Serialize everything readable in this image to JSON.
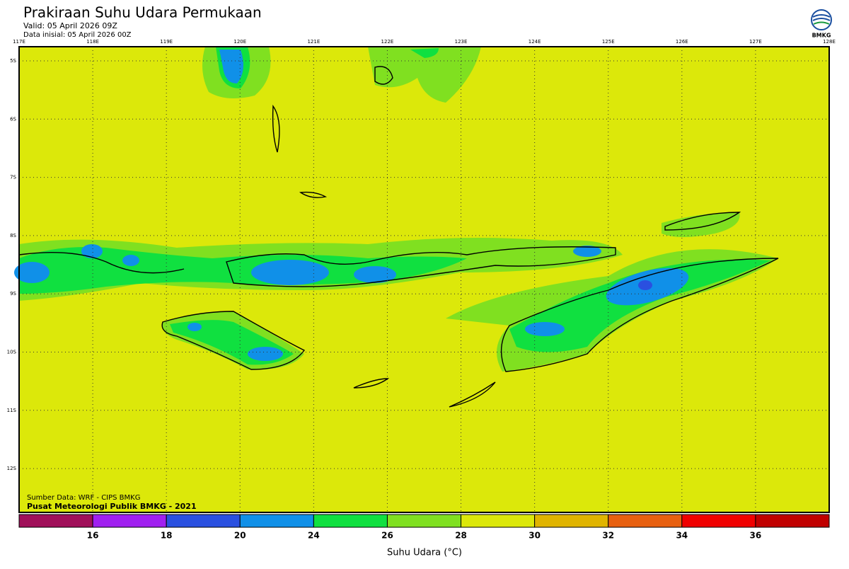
{
  "header": {
    "title": "Prakiraan Suhu Udara Permukaan",
    "valid": "Valid: 05 April 2026 09Z",
    "initial": "Data inisial: 05 April 2026 00Z",
    "logo_text": "BMKG"
  },
  "map": {
    "longitude_labels": [
      "117E",
      "118E",
      "119E",
      "120E",
      "121E",
      "122E",
      "123E",
      "124E",
      "125E",
      "126E",
      "127E",
      "128E"
    ],
    "latitude_labels": [
      "5S",
      "6S",
      "7S",
      "8S",
      "9S",
      "10S",
      "11S",
      "12S"
    ],
    "source": "Sumber Data: WRF - CIPS BMKG",
    "credit": "Pusat Meteorologi Publik BMKG - 2021"
  },
  "colorbar": {
    "colors": [
      "#a0105a",
      "#a020f0",
      "#2a50e0",
      "#1090e8",
      "#10e040",
      "#80e020",
      "#dce80a",
      "#e0b400",
      "#e86010",
      "#f00000",
      "#c00000"
    ],
    "labels": [
      16,
      18,
      20,
      24,
      26,
      28,
      30,
      32,
      34,
      36
    ],
    "title": "Suhu Udara (°C)"
  }
}
